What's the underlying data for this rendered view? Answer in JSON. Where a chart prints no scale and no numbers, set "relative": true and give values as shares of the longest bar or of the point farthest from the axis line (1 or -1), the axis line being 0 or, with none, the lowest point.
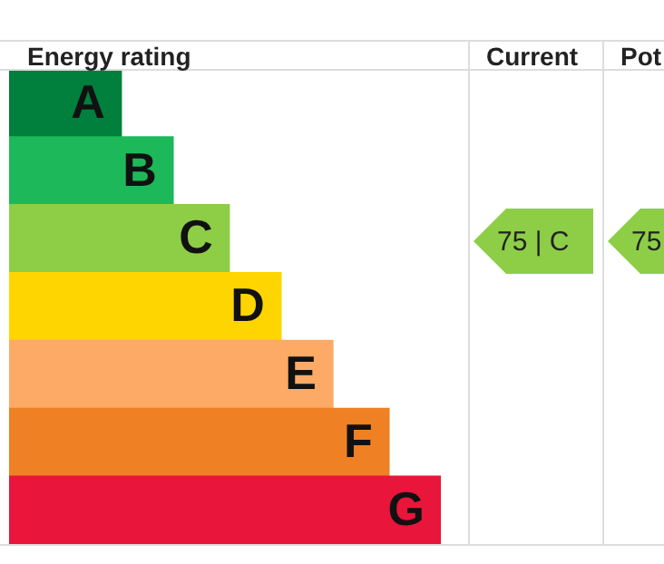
{
  "chart_data": {
    "type": "bar",
    "orientation": "horizontal",
    "relative": true,
    "title": "Energy rating",
    "categories": [
      "A",
      "B",
      "C",
      "D",
      "E",
      "F",
      "G"
    ],
    "values": [
      0.26,
      0.38,
      0.51,
      0.63,
      0.75,
      0.88,
      1
    ],
    "colors": [
      "#007f3d",
      "#1db859",
      "#8dce46",
      "#ffd500",
      "#fcaa65",
      "#ef8023",
      "#e9153b"
    ],
    "annotations": [
      "Current",
      "Pot",
      "75 | C",
      "75"
    ]
  }
}
